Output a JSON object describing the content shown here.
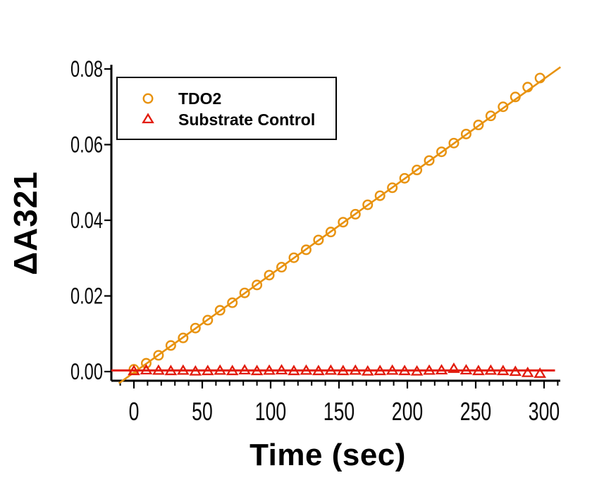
{
  "figure": {
    "background": "#ffffff",
    "axis_color": "#000000",
    "text_color": "#000000"
  },
  "chart_data": {
    "type": "scatter",
    "title": "",
    "xlabel": "Time (sec)",
    "ylabel": "ΔA321",
    "xlim": [
      -16.5,
      312
    ],
    "ylim": [
      -0.0024,
      0.0812
    ],
    "grid": false,
    "legend_position": "top-left",
    "x_ticks": [
      {
        "value": 0,
        "label": "0"
      },
      {
        "value": 50,
        "label": "50"
      },
      {
        "value": 100,
        "label": "100"
      },
      {
        "value": 150,
        "label": "150"
      },
      {
        "value": 200,
        "label": "200"
      },
      {
        "value": 250,
        "label": "250"
      },
      {
        "value": 300,
        "label": "300"
      }
    ],
    "x_minor_step": 10,
    "y_ticks": [
      {
        "value": 0.0,
        "label": "0.00"
      },
      {
        "value": 0.02,
        "label": "0.02"
      },
      {
        "value": 0.04,
        "label": "0.04"
      },
      {
        "value": 0.06,
        "label": "0.06"
      },
      {
        "value": 0.08,
        "label": "0.08"
      }
    ],
    "series": [
      {
        "name": "TDO2",
        "marker": "circle",
        "color": "#E8920E",
        "fit_line": {
          "t1": -11,
          "v1": -0.0031,
          "t2": 312,
          "v2": 0.0805
        },
        "points": [
          [
            0,
            0.0006
          ],
          [
            9,
            0.0022
          ],
          [
            18,
            0.0043
          ],
          [
            27,
            0.0069
          ],
          [
            36,
            0.0089
          ],
          [
            45,
            0.0115
          ],
          [
            54,
            0.0136
          ],
          [
            63,
            0.0162
          ],
          [
            72,
            0.0182
          ],
          [
            81,
            0.0208
          ],
          [
            90,
            0.0229
          ],
          [
            99,
            0.0255
          ],
          [
            108,
            0.0276
          ],
          [
            117,
            0.0301
          ],
          [
            126,
            0.0322
          ],
          [
            135,
            0.0348
          ],
          [
            144,
            0.0369
          ],
          [
            153,
            0.0395
          ],
          [
            162,
            0.0416
          ],
          [
            171,
            0.0441
          ],
          [
            180,
            0.0465
          ],
          [
            189,
            0.0486
          ],
          [
            198,
            0.0511
          ],
          [
            207,
            0.0533
          ],
          [
            216,
            0.0558
          ],
          [
            225,
            0.0581
          ],
          [
            234,
            0.0604
          ],
          [
            243,
            0.0628
          ],
          [
            252,
            0.0652
          ],
          [
            261,
            0.0676
          ],
          [
            270,
            0.07
          ],
          [
            279,
            0.0726
          ],
          [
            288,
            0.0752
          ],
          [
            297,
            0.0776
          ]
        ]
      },
      {
        "name": "Substrate Control",
        "marker": "triangle",
        "color": "#E21B0C",
        "fit_line": {
          "t1": -16.5,
          "v1": 0.0003,
          "t2": 308,
          "v2": 0.0003
        },
        "points": [
          [
            0,
            0.0002
          ],
          [
            9,
            0.0004
          ],
          [
            18,
            0.0003
          ],
          [
            27,
            0.0002
          ],
          [
            36,
            0.0003
          ],
          [
            45,
            0.0001
          ],
          [
            54,
            0.0002
          ],
          [
            63,
            0.0003
          ],
          [
            72,
            0.0002
          ],
          [
            81,
            0.0004
          ],
          [
            90,
            0.0002
          ],
          [
            99,
            0.0003
          ],
          [
            108,
            0.0004
          ],
          [
            117,
            0.0002
          ],
          [
            126,
            0.0003
          ],
          [
            135,
            0.0002
          ],
          [
            144,
            0.0003
          ],
          [
            153,
            0.0002
          ],
          [
            162,
            0.0003
          ],
          [
            171,
            0.0001
          ],
          [
            180,
            0.0002
          ],
          [
            189,
            0.0003
          ],
          [
            198,
            0.0002
          ],
          [
            207,
            0.0001
          ],
          [
            216,
            0.0003
          ],
          [
            225,
            0.0004
          ],
          [
            234,
            0.0008
          ],
          [
            243,
            0.0004
          ],
          [
            252,
            0.0002
          ],
          [
            261,
            0.0003
          ],
          [
            270,
            0.0002
          ],
          [
            279,
            0.0
          ],
          [
            288,
            -0.0003
          ],
          [
            297,
            -0.0005
          ]
        ]
      }
    ]
  }
}
